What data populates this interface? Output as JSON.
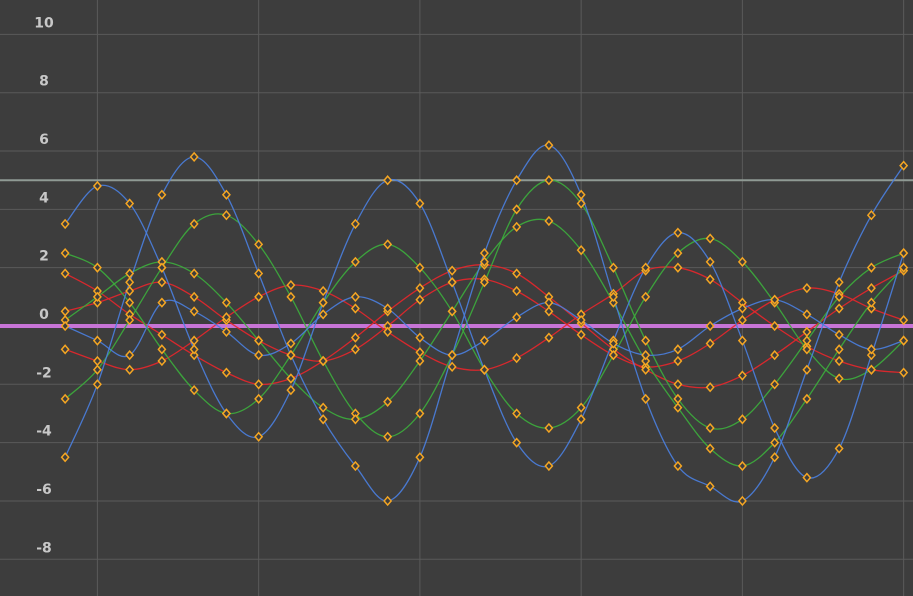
{
  "chart_data": {
    "type": "line",
    "x": [
      0,
      1,
      2,
      3,
      4,
      5,
      6,
      7,
      8,
      9,
      10,
      11,
      12,
      13,
      14,
      15,
      16,
      17,
      18,
      19,
      20,
      21,
      22,
      23,
      24,
      25,
      26
    ],
    "xlim": [
      -2.02,
      26.29
    ],
    "xticks": [
      1,
      6,
      11,
      16,
      21,
      26
    ],
    "ylim": [
      -9.26,
      11.18
    ],
    "yticks": [
      10,
      8,
      6,
      4,
      2,
      0,
      -2,
      -4,
      -6,
      -8
    ],
    "grid": true,
    "marker_color": "#f5a623",
    "reference_lines": [
      {
        "value": 0,
        "color": "#c774d6"
      },
      {
        "value": 5,
        "color": "#8f9a94"
      }
    ],
    "series": [
      {
        "color": "#e8262b",
        "values": [
          0.5,
          0.8,
          1.2,
          1.5,
          1.0,
          0.2,
          -0.5,
          -1.0,
          -1.2,
          -0.8,
          0.0,
          0.9,
          1.5,
          1.6,
          1.2,
          0.5,
          -0.3,
          -1.0,
          -1.4,
          -1.2,
          -0.6,
          0.2,
          0.9,
          1.3,
          1.1,
          0.6,
          0.2
        ]
      },
      {
        "color": "#e8262b",
        "values": [
          -0.8,
          -1.2,
          -1.5,
          -1.2,
          -0.5,
          0.3,
          1.0,
          1.4,
          1.2,
          0.6,
          -0.2,
          -0.9,
          -1.4,
          -1.5,
          -1.1,
          -0.4,
          0.4,
          1.1,
          1.9,
          2.0,
          1.6,
          0.8,
          0.0,
          -0.7,
          -1.2,
          -1.5,
          -1.6
        ]
      },
      {
        "color": "#e8262b",
        "values": [
          1.8,
          1.2,
          0.4,
          -0.3,
          -1.0,
          -1.6,
          -2.0,
          -1.8,
          -1.2,
          -0.4,
          0.5,
          1.3,
          1.9,
          2.1,
          1.8,
          1.0,
          0.1,
          -0.8,
          -1.5,
          -2.0,
          -2.1,
          -1.7,
          -1.0,
          -0.2,
          0.6,
          1.3,
          1.9
        ]
      },
      {
        "color": "#3cae3c",
        "values": [
          2.5,
          2.0,
          0.8,
          -0.8,
          -2.2,
          -3.0,
          -2.5,
          -1.0,
          0.8,
          2.2,
          2.8,
          2.0,
          0.5,
          -1.5,
          -3.0,
          -3.5,
          -2.8,
          -1.0,
          1.0,
          2.5,
          3.0,
          2.2,
          0.8,
          -0.8,
          -1.8,
          -1.5,
          -0.5
        ]
      },
      {
        "color": "#3cae3c",
        "values": [
          -2.5,
          -1.5,
          0.2,
          2.0,
          3.5,
          3.8,
          2.8,
          1.0,
          -1.2,
          -3.0,
          -3.8,
          -3.0,
          -1.0,
          1.5,
          4.0,
          5.0,
          4.2,
          2.0,
          -0.5,
          -2.5,
          -3.5,
          -3.2,
          -2.0,
          -0.5,
          1.0,
          2.0,
          2.5
        ]
      },
      {
        "color": "#3cae3c",
        "values": [
          0.2,
          1.0,
          1.8,
          2.2,
          1.8,
          0.8,
          -0.5,
          -1.8,
          -2.8,
          -3.2,
          -2.6,
          -1.2,
          0.5,
          2.2,
          3.4,
          3.6,
          2.6,
          0.8,
          -1.2,
          -2.8,
          -4.2,
          -4.8,
          -4.0,
          -2.5,
          -0.8,
          0.8,
          2.0
        ]
      },
      {
        "color": "#4a7fe0",
        "values": [
          -4.5,
          -2.0,
          1.5,
          4.5,
          5.8,
          4.5,
          1.8,
          -1.0,
          -3.2,
          -4.8,
          -6.0,
          -4.5,
          -1.0,
          2.5,
          5.0,
          6.2,
          4.5,
          1.0,
          -2.5,
          -4.8,
          -5.5,
          -6.0,
          -4.5,
          -1.5,
          1.5,
          3.8,
          5.5
        ]
      },
      {
        "color": "#4a7fe0",
        "values": [
          3.5,
          4.8,
          4.2,
          2.0,
          -0.8,
          -3.0,
          -3.8,
          -2.2,
          0.8,
          3.5,
          5.0,
          4.2,
          1.5,
          -1.5,
          -4.0,
          -4.8,
          -3.2,
          -0.5,
          2.0,
          3.2,
          2.2,
          -0.5,
          -3.5,
          -5.2,
          -4.2,
          -1.0,
          2.5
        ]
      },
      {
        "color": "#4a7fe0",
        "values": [
          0.0,
          -0.5,
          -1.0,
          0.8,
          0.5,
          -0.2,
          -1.0,
          -0.6,
          0.4,
          1.0,
          0.6,
          -0.4,
          -1.0,
          -0.5,
          0.3,
          0.8,
          0.2,
          -0.6,
          -1.0,
          -0.8,
          0.0,
          0.6,
          0.9,
          0.4,
          -0.3,
          -0.8,
          -0.5
        ]
      }
    ]
  }
}
